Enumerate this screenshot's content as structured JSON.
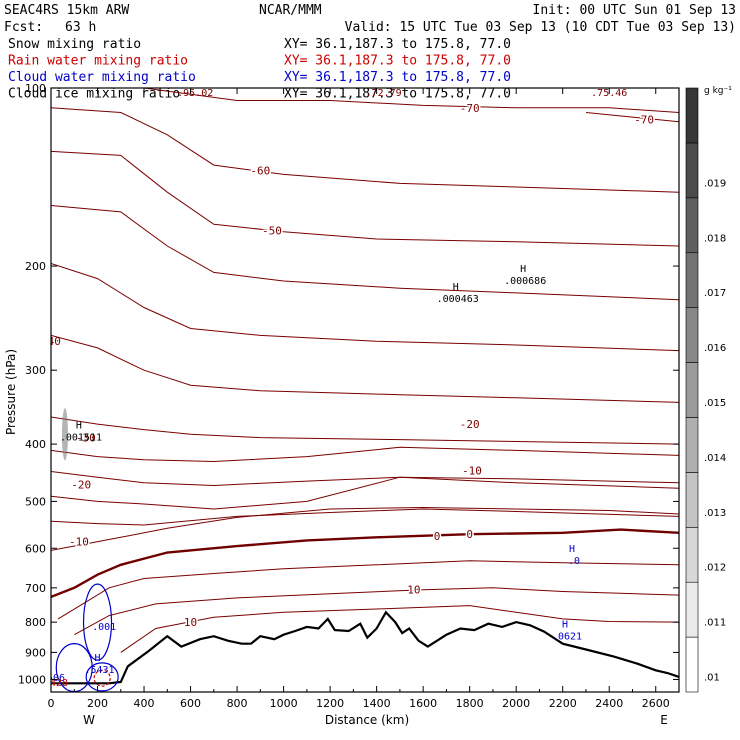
{
  "header": {
    "model": "SEAC4RS 15km ARW",
    "center": "NCAR/MMM",
    "init": "Init: 00 UTC Sun 01 Sep 13",
    "fcst_label": "Fcst:",
    "fcst_value": "63 h",
    "valid": "Valid: 15 UTC Tue 03 Sep 13 (10 CDT Tue 03 Sep 13)",
    "rows": [
      {
        "name": "Snow mixing ratio",
        "xy": "XY=  36.1,187.3 to 175.8, 77.0",
        "color": "#000000"
      },
      {
        "name": "Rain water mixing ratio",
        "xy": "XY=  36.1,187.3 to 175.8, 77.0",
        "color": "#cc0000"
      },
      {
        "name": "Cloud water mixing ratio",
        "xy": "XY=  36.1,187.3 to 175.8, 77.0",
        "color": "#0000cc"
      },
      {
        "name": "Cloud ice mixing ratio",
        "xy": "XY=  36.1,187.3 to 175.8, 77.0",
        "color": "#000000"
      }
    ]
  },
  "colors": {
    "isotherm": "#7a0000",
    "zero_isotherm": "#700000",
    "terrain": "#000000",
    "cloud_water": "#0000cc",
    "rain": "#cc0000"
  },
  "chart_data": {
    "type": "cross-section",
    "xlabel": "Distance (km)",
    "ylabel": "Pressure (hPa)",
    "xlim": [
      0,
      2700
    ],
    "ylim": [
      1050,
      100
    ],
    "y_scale": "log",
    "x_ticks": [
      0,
      200,
      400,
      600,
      800,
      1000,
      1200,
      1400,
      1600,
      1800,
      2000,
      2200,
      2400,
      2600
    ],
    "y_ticks": [
      100,
      200,
      300,
      400,
      500,
      600,
      700,
      800,
      900,
      1000
    ],
    "left_end_label": "W",
    "right_end_label": "E",
    "colorbar": {
      "unit": "g kg⁻¹",
      "labels": [
        ".01",
        ".011",
        ".012",
        ".013",
        ".014",
        ".015",
        ".016",
        ".017",
        ".018",
        ".019"
      ]
    },
    "isotherms": [
      {
        "label": "-70",
        "points": [
          [
            400,
            100
          ],
          [
            800,
            105
          ],
          [
            1200,
            105
          ],
          [
            1600,
            107
          ],
          [
            2000,
            108
          ],
          [
            2400,
            108
          ],
          [
            2700,
            110
          ]
        ],
        "labels": [
          [
            1800,
            108
          ]
        ]
      },
      {
        "label": "-70",
        "points": [
          [
            2300,
            110
          ],
          [
            2500,
            112
          ],
          [
            2700,
            114
          ]
        ],
        "labels": [
          [
            2550,
            113
          ]
        ]
      },
      {
        "label": "-60",
        "points": [
          [
            0,
            108
          ],
          [
            300,
            110
          ],
          [
            500,
            120
          ],
          [
            700,
            135
          ],
          [
            1000,
            140
          ],
          [
            1500,
            145
          ],
          [
            2000,
            147
          ],
          [
            2700,
            150
          ]
        ],
        "labels": [
          [
            900,
            138
          ]
        ]
      },
      {
        "label": "-50",
        "points": [
          [
            0,
            128
          ],
          [
            300,
            130
          ],
          [
            500,
            150
          ],
          [
            700,
            170
          ],
          [
            1000,
            175
          ],
          [
            1400,
            180
          ],
          [
            2000,
            182
          ],
          [
            2700,
            185
          ]
        ],
        "labels": [
          [
            950,
            174
          ]
        ]
      },
      {
        "label": "",
        "points": [
          [
            0,
            158
          ],
          [
            300,
            162
          ],
          [
            500,
            185
          ],
          [
            700,
            205
          ],
          [
            1000,
            212
          ],
          [
            1500,
            218
          ],
          [
            2000,
            222
          ],
          [
            2700,
            228
          ]
        ],
        "labels": []
      },
      {
        "label": "-40",
        "points": [
          [
            0,
            198
          ],
          [
            200,
            210
          ],
          [
            400,
            235
          ],
          [
            600,
            255
          ],
          [
            900,
            262
          ],
          [
            1400,
            268
          ],
          [
            2000,
            272
          ],
          [
            2700,
            278
          ]
        ],
        "labels": [
          [
            0,
            268
          ]
        ]
      },
      {
        "label": "",
        "points": [
          [
            0,
            262
          ],
          [
            200,
            275
          ],
          [
            400,
            300
          ],
          [
            600,
            318
          ],
          [
            900,
            325
          ],
          [
            1500,
            330
          ],
          [
            2000,
            334
          ],
          [
            2700,
            340
          ]
        ],
        "labels": []
      },
      {
        "label": "-30",
        "points": [
          [
            0,
            360
          ],
          [
            200,
            370
          ],
          [
            400,
            378
          ],
          [
            600,
            385
          ],
          [
            900,
            390
          ],
          [
            1500,
            393
          ],
          [
            2000,
            396
          ],
          [
            2700,
            400
          ]
        ],
        "labels": [
          [
            150,
            390
          ]
        ]
      },
      {
        "label": "-20",
        "points": [
          [
            0,
            410
          ],
          [
            200,
            420
          ],
          [
            400,
            425
          ],
          [
            700,
            428
          ],
          [
            1100,
            420
          ],
          [
            1500,
            405
          ],
          [
            2000,
            410
          ],
          [
            2700,
            418
          ]
        ],
        "labels": [
          [
            1800,
            370
          ]
        ]
      },
      {
        "label": "-20",
        "points": [
          [
            0,
            445
          ],
          [
            200,
            455
          ],
          [
            400,
            465
          ],
          [
            700,
            470
          ],
          [
            1100,
            462
          ],
          [
            1500,
            455
          ],
          [
            2000,
            458
          ],
          [
            2700,
            465
          ]
        ],
        "labels": [
          [
            130,
            468
          ]
        ]
      },
      {
        "label": "-10",
        "points": [
          [
            0,
            490
          ],
          [
            200,
            500
          ],
          [
            400,
            505
          ],
          [
            700,
            515
          ],
          [
            1100,
            500
          ],
          [
            1500,
            455
          ],
          [
            2000,
            465
          ],
          [
            2700,
            475
          ]
        ],
        "labels": [
          [
            1810,
            443
          ]
        ]
      },
      {
        "label": "",
        "points": [
          [
            0,
            540
          ],
          [
            200,
            545
          ],
          [
            400,
            548
          ],
          [
            800,
            530
          ],
          [
            1200,
            522
          ],
          [
            1600,
            515
          ],
          [
            2000,
            520
          ],
          [
            2700,
            530
          ]
        ],
        "labels": []
      },
      {
        "label": "-10",
        "points": [
          [
            0,
            605
          ],
          [
            150,
            590
          ],
          [
            300,
            575
          ],
          [
            500,
            555
          ],
          [
            800,
            532
          ],
          [
            1200,
            515
          ],
          [
            1600,
            512
          ],
          [
            2000,
            515
          ],
          [
            2400,
            518
          ],
          [
            2700,
            525
          ]
        ],
        "labels": [
          [
            120,
            585
          ]
        ]
      },
      {
        "label": "0",
        "points": [
          [
            0,
            725
          ],
          [
            100,
            700
          ],
          [
            200,
            665
          ],
          [
            300,
            640
          ],
          [
            500,
            610
          ],
          [
            800,
            595
          ],
          [
            1100,
            582
          ],
          [
            1400,
            575
          ],
          [
            1800,
            568
          ],
          [
            2200,
            565
          ],
          [
            2450,
            558
          ],
          [
            2700,
            565
          ]
        ],
        "labels": [
          [
            1660,
            572
          ],
          [
            1800,
            568
          ]
        ],
        "heavy": true
      },
      {
        "label": "",
        "points": [
          [
            30,
            790
          ],
          [
            150,
            740
          ],
          [
            250,
            700
          ],
          [
            400,
            675
          ],
          [
            700,
            662
          ],
          [
            1000,
            650
          ],
          [
            1400,
            640
          ],
          [
            1800,
            630
          ],
          [
            2200,
            635
          ],
          [
            2700,
            640
          ]
        ],
        "labels": []
      },
      {
        "label": "10",
        "points": [
          [
            100,
            840
          ],
          [
            250,
            780
          ],
          [
            450,
            745
          ],
          [
            800,
            728
          ],
          [
            1200,
            716
          ],
          [
            1600,
            705
          ],
          [
            1900,
            700
          ],
          [
            2200,
            710
          ],
          [
            2700,
            720
          ]
        ],
        "labels": [
          [
            1560,
            705
          ]
        ]
      },
      {
        "label": "10",
        "points": [
          [
            300,
            900
          ],
          [
            450,
            820
          ],
          [
            700,
            785
          ],
          [
            1000,
            770
          ],
          [
            1400,
            760
          ],
          [
            1800,
            750
          ],
          [
            2000,
            770
          ],
          [
            2200,
            790
          ],
          [
            2400,
            798
          ],
          [
            2700,
            800
          ]
        ],
        "labels": [
          [
            600,
            800
          ]
        ]
      }
    ],
    "terrain": {
      "points": [
        [
          0,
          1015
        ],
        [
          250,
          1015
        ],
        [
          300,
          1010
        ],
        [
          330,
          950
        ],
        [
          420,
          895
        ],
        [
          500,
          845
        ],
        [
          560,
          880
        ],
        [
          640,
          855
        ],
        [
          700,
          845
        ],
        [
          760,
          860
        ],
        [
          820,
          870
        ],
        [
          860,
          870
        ],
        [
          900,
          845
        ],
        [
          960,
          855
        ],
        [
          1000,
          840
        ],
        [
          1050,
          828
        ],
        [
          1100,
          815
        ],
        [
          1150,
          820
        ],
        [
          1190,
          790
        ],
        [
          1220,
          825
        ],
        [
          1280,
          828
        ],
        [
          1330,
          805
        ],
        [
          1360,
          850
        ],
        [
          1400,
          820
        ],
        [
          1440,
          770
        ],
        [
          1480,
          800
        ],
        [
          1510,
          835
        ],
        [
          1540,
          820
        ],
        [
          1580,
          860
        ],
        [
          1620,
          880
        ],
        [
          1660,
          860
        ],
        [
          1700,
          840
        ],
        [
          1760,
          820
        ],
        [
          1820,
          825
        ],
        [
          1880,
          805
        ],
        [
          1940,
          815
        ],
        [
          2000,
          800
        ],
        [
          2060,
          810
        ],
        [
          2120,
          830
        ],
        [
          2200,
          870
        ],
        [
          2300,
          890
        ],
        [
          2420,
          915
        ],
        [
          2520,
          940
        ],
        [
          2600,
          965
        ],
        [
          2650,
          975
        ],
        [
          2700,
          990
        ]
      ]
    },
    "maxima": [
      {
        "letter": "H",
        "value": ".000463",
        "x": 1740,
        "p": 223,
        "color": "#000000"
      },
      {
        "letter": "H",
        "value": ".000686",
        "x": 2030,
        "p": 208,
        "color": "#000000"
      },
      {
        "letter": "H",
        "value": ".001511",
        "x": 120,
        "p": 382,
        "color": "#000000"
      },
      {
        "letter": "H",
        "value": ".0",
        "x": 2240,
        "p": 618,
        "color": "#0000cc"
      },
      {
        "letter": "H",
        "value": ".0621",
        "x": 2210,
        "p": 830,
        "color": "#0000cc"
      },
      {
        "letter": "H",
        "value": ".5431",
        "x": 200,
        "p": 945,
        "color": "#0000cc"
      },
      {
        "letter": "",
        "value": ".001",
        "x": 220,
        "p": 800,
        "color": "#0000cc"
      },
      {
        "letter": "",
        "value": ".506",
        "x": 0,
        "p": 975,
        "color": "#0000cc"
      },
      {
        "letter": "",
        "value": ".2428",
        "x": 0,
        "p": 995,
        "color": "#cc0000"
      }
    ],
    "top_strings": [
      ".95.02",
      ".72.79",
      ".75.46"
    ]
  }
}
